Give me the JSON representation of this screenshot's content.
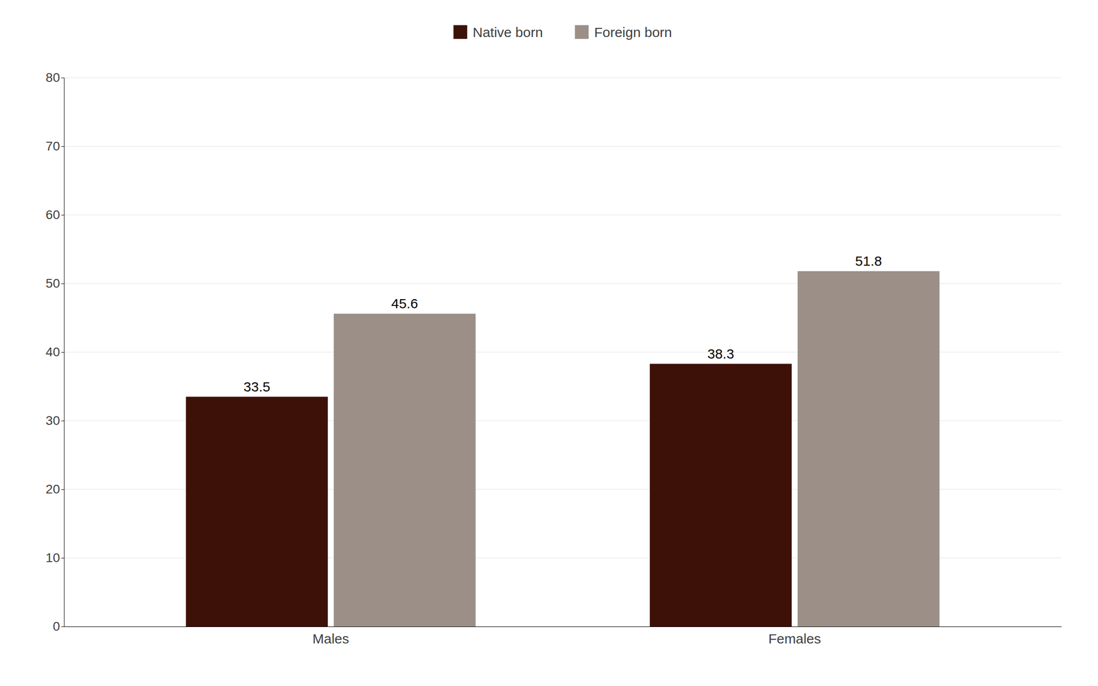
{
  "chart_data": {
    "type": "bar",
    "categories": [
      "Males",
      "Females"
    ],
    "series": [
      {
        "name": "Native born",
        "color": "#3d1008",
        "values": [
          33.5,
          38.3
        ]
      },
      {
        "name": "Foreign born",
        "color": "#9b8f87",
        "values": [
          45.6,
          51.8
        ]
      }
    ],
    "ylim": [
      0,
      80
    ],
    "yticks": [
      0,
      10,
      20,
      30,
      40,
      50,
      60,
      70,
      80
    ],
    "grid": true,
    "legend": "top",
    "data_labels": true
  }
}
